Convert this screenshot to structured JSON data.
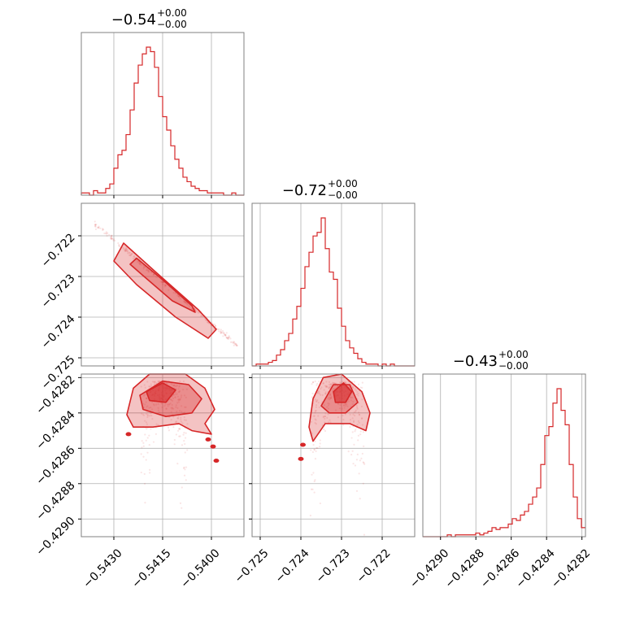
{
  "chart_data": {
    "type": "corner",
    "color": "#d62728",
    "grid": true,
    "parameters": [
      {
        "title_value": "−0.54",
        "title_plus": "+0.00",
        "title_minus": "−0.00",
        "range": [
          -0.544,
          -0.539
        ],
        "ticks": [
          -0.543,
          -0.5415,
          -0.54
        ],
        "tick_labels": [
          "−0.5430",
          "−0.5415",
          "−0.5400"
        ],
        "hist": {
          "start": -0.544,
          "bin_width": 0.000125,
          "counts": [
            1,
            1,
            0,
            2,
            1,
            1,
            3,
            5,
            12,
            18,
            20,
            27,
            38,
            50,
            58,
            63,
            66,
            64,
            57,
            44,
            35,
            29,
            22,
            16,
            12,
            8,
            6,
            4,
            3,
            2,
            2,
            1,
            1,
            1,
            1,
            0,
            0,
            1,
            0,
            0
          ]
        }
      },
      {
        "title_value": "−0.72",
        "title_plus": "+0.00",
        "title_minus": "−0.00",
        "range": [
          -0.7252,
          -0.7212
        ],
        "ticks": [
          -0.725,
          -0.724,
          -0.723,
          -0.722
        ],
        "tick_labels": [
          "−0.725",
          "−0.724",
          "−0.723",
          "−0.722"
        ],
        "y_ticks": [
          -0.722,
          -0.723,
          -0.724,
          -0.725
        ],
        "y_tick_labels": [
          "−0.722",
          "−0.723",
          "−0.724",
          "−0.725"
        ],
        "hist": {
          "start": -0.7252,
          "bin_width": 0.0001,
          "counts": [
            0,
            1,
            1,
            1,
            2,
            3,
            6,
            9,
            14,
            18,
            26,
            33,
            43,
            55,
            63,
            72,
            74,
            82,
            65,
            52,
            48,
            32,
            22,
            14,
            10,
            7,
            4,
            2,
            1,
            1,
            1,
            0,
            1,
            0,
            1,
            0,
            0,
            0,
            0,
            0
          ]
        }
      },
      {
        "title_value": "−0.43",
        "title_plus": "+0.00",
        "title_minus": "−0.00",
        "range": [
          -0.4291,
          -0.42818
        ],
        "ticks": [
          -0.429,
          -0.4288,
          -0.4286,
          -0.4284,
          -0.4282
        ],
        "tick_labels": [
          "−0.4290",
          "−0.4288",
          "−0.4286",
          "−0.4284",
          "−0.4282"
        ],
        "y_ticks": [
          -0.4282,
          -0.4284,
          -0.4286,
          -0.4288,
          -0.429
        ],
        "y_tick_labels": [
          "−0.4282",
          "−0.4284",
          "−0.4286",
          "−0.4288",
          "−0.4290"
        ],
        "hist": {
          "start": -0.4291,
          "bin_width": 2.3e-05,
          "counts": [
            0,
            0,
            0,
            0,
            0,
            0,
            1,
            0,
            1,
            1,
            1,
            1,
            1,
            2,
            1,
            2,
            3,
            5,
            4,
            5,
            5,
            7,
            10,
            9,
            12,
            14,
            18,
            22,
            27,
            40,
            56,
            61,
            74,
            82,
            70,
            62,
            40,
            22,
            10,
            5
          ]
        }
      }
    ],
    "pairs": [
      {
        "x_param": 0,
        "y_param": 1,
        "contours": [
          {
            "level": "outer",
            "points": [
              [
                -0.5427,
                -0.72218
              ],
              [
                -0.5417,
                -0.7229
              ],
              [
                -0.5404,
                -0.72382
              ],
              [
                -0.53985,
                -0.7243
              ],
              [
                -0.5401,
                -0.72452
              ],
              [
                -0.5411,
                -0.724
              ],
              [
                -0.5423,
                -0.7232
              ],
              [
                -0.543,
                -0.72262
              ]
            ]
          },
          {
            "level": "inner",
            "points": [
              [
                -0.5423,
                -0.72255
              ],
              [
                -0.5415,
                -0.72308
              ],
              [
                -0.5406,
                -0.72372
              ],
              [
                -0.5405,
                -0.72388
              ],
              [
                -0.5412,
                -0.7236
              ],
              [
                -0.5421,
                -0.72298
              ],
              [
                -0.5425,
                -0.7227
              ]
            ]
          }
        ],
        "scatter_line": {
          "x_start": -0.5436,
          "y_start": -0.7217,
          "x_end": -0.5392,
          "y_end": -0.7247,
          "spread": 3e-05
        }
      },
      {
        "x_param": 0,
        "y_param": 2,
        "contours": [
          {
            "level": "outer",
            "points": [
              [
                -0.5426,
                -0.42841
              ],
              [
                -0.5424,
                -0.42826
              ],
              [
                -0.5419,
                -0.42818
              ],
              [
                -0.5408,
                -0.42818
              ],
              [
                -0.5402,
                -0.42826
              ],
              [
                -0.5399,
                -0.42838
              ],
              [
                -0.5402,
                -0.42846
              ],
              [
                -0.54,
                -0.42852
              ],
              [
                -0.5406,
                -0.4285
              ],
              [
                -0.541,
                -0.42846
              ],
              [
                -0.5418,
                -0.42848
              ],
              [
                -0.5424,
                -0.42848
              ]
            ]
          },
          {
            "level": "inner",
            "points": [
              [
                -0.5422,
                -0.4283
              ],
              [
                -0.5415,
                -0.42822
              ],
              [
                -0.5407,
                -0.42824
              ],
              [
                -0.5403,
                -0.42832
              ],
              [
                -0.5406,
                -0.4284
              ],
              [
                -0.5414,
                -0.42842
              ],
              [
                -0.5421,
                -0.42838
              ]
            ]
          },
          {
            "level": "core",
            "points": [
              [
                -0.542,
                -0.42828
              ],
              [
                -0.5415,
                -0.42823
              ],
              [
                -0.5411,
                -0.42827
              ],
              [
                -0.5414,
                -0.42834
              ],
              [
                -0.5419,
                -0.42833
              ]
            ]
          }
        ],
        "blobs": [
          [
            -0.54255,
            -0.42852
          ],
          [
            -0.53995,
            -0.42859
          ],
          [
            -0.53985,
            -0.42867
          ],
          [
            -0.5401,
            -0.42855
          ]
        ],
        "scatter_cloud": {
          "x_center": -0.54145,
          "x_spread": 0.00075,
          "y_top": -0.42822,
          "y_bottom": -0.4289
        }
      },
      {
        "x_param": 1,
        "y_param": 2,
        "contours": [
          {
            "level": "outer",
            "points": [
              [
                -0.7238,
                -0.42848
              ],
              [
                -0.7237,
                -0.42832
              ],
              [
                -0.72345,
                -0.4282
              ],
              [
                -0.723,
                -0.42818
              ],
              [
                -0.7225,
                -0.42828
              ],
              [
                -0.7223,
                -0.4284
              ],
              [
                -0.7224,
                -0.4285
              ],
              [
                -0.7228,
                -0.42846
              ],
              [
                -0.7234,
                -0.42846
              ],
              [
                -0.7237,
                -0.42856
              ]
            ]
          },
          {
            "level": "inner",
            "points": [
              [
                -0.7235,
                -0.42836
              ],
              [
                -0.7232,
                -0.42824
              ],
              [
                -0.7228,
                -0.42824
              ],
              [
                -0.7226,
                -0.42834
              ],
              [
                -0.7229,
                -0.4284
              ],
              [
                -0.7233,
                -0.4284
              ]
            ]
          },
          {
            "level": "core",
            "points": [
              [
                -0.7232,
                -0.42828
              ],
              [
                -0.72295,
                -0.42823
              ],
              [
                -0.72275,
                -0.42828
              ],
              [
                -0.7229,
                -0.42834
              ],
              [
                -0.72315,
                -0.42834
              ]
            ]
          }
        ],
        "blobs": [
          [
            -0.72395,
            -0.42858
          ],
          [
            -0.724,
            -0.42866
          ]
        ],
        "scatter_cloud": {
          "x_center": -0.7231,
          "x_spread": 0.0007,
          "y_top": -0.42822,
          "y_bottom": -0.4289
        }
      }
    ]
  }
}
